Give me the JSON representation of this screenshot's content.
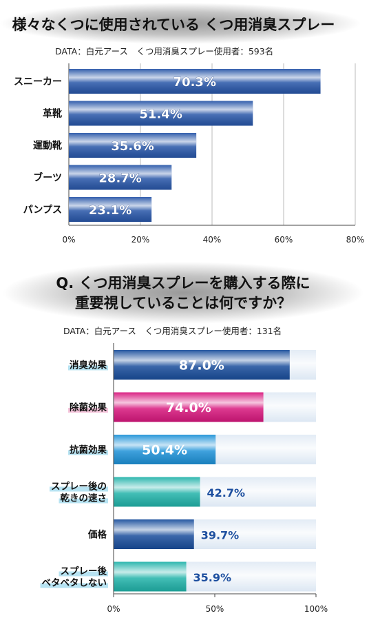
{
  "chart_data": [
    {
      "type": "bar",
      "orientation": "horizontal",
      "title": "様々なくつに使用されている くつ用消臭スプレー",
      "source": "DATA：白元アース　くつ用消臭スプレー使用者：593名",
      "categories": [
        "スニーカー",
        "革靴",
        "運動靴",
        "ブーツ",
        "パンプス"
      ],
      "values": [
        70.3,
        51.4,
        35.6,
        28.7,
        23.1
      ],
      "value_labels": [
        "70.3%",
        "51.4%",
        "35.6%",
        "28.7%",
        "23.1%"
      ],
      "xlim": [
        0,
        80
      ],
      "xticks": [
        "0%",
        "20%",
        "40%",
        "60%",
        "80%"
      ],
      "grid": true,
      "bar_color": "#2856a8"
    },
    {
      "type": "bar",
      "orientation": "horizontal",
      "stacked_on_track": true,
      "title_lines": [
        "Q. くつ用消臭スプレーを購入する際に",
        "重要視していることは何ですか？"
      ],
      "source": "DATA：白元アース　くつ用消臭スプレー使用者：131名",
      "categories": [
        [
          "消臭効果"
        ],
        [
          "除菌効果"
        ],
        [
          "抗菌効果"
        ],
        [
          "スプレー後の",
          "乾きの速さ"
        ],
        [
          "価格"
        ],
        [
          "スプレー後",
          "ベタベタしない"
        ]
      ],
      "values": [
        87.0,
        74.0,
        50.4,
        42.7,
        39.7,
        35.9
      ],
      "value_labels": [
        "87.0%",
        "74.0%",
        "50.4%",
        "42.7%",
        "39.7%",
        "35.9%"
      ],
      "bar_colors": [
        "#1a4e9c",
        "#d8187e",
        "#1e92d8",
        "#22b3aa",
        "#1a4e9c",
        "#22b3aa"
      ],
      "label_highlights": [
        "#b7e3f2",
        "#f6c6dc",
        "#b7e3f2",
        "#b7e3f2",
        "#ffffff",
        "#b7e3f2"
      ],
      "track_color": "#dce7f3",
      "xlim": [
        0,
        100
      ],
      "xticks": [
        "0%",
        "50%",
        "100%"
      ]
    }
  ]
}
